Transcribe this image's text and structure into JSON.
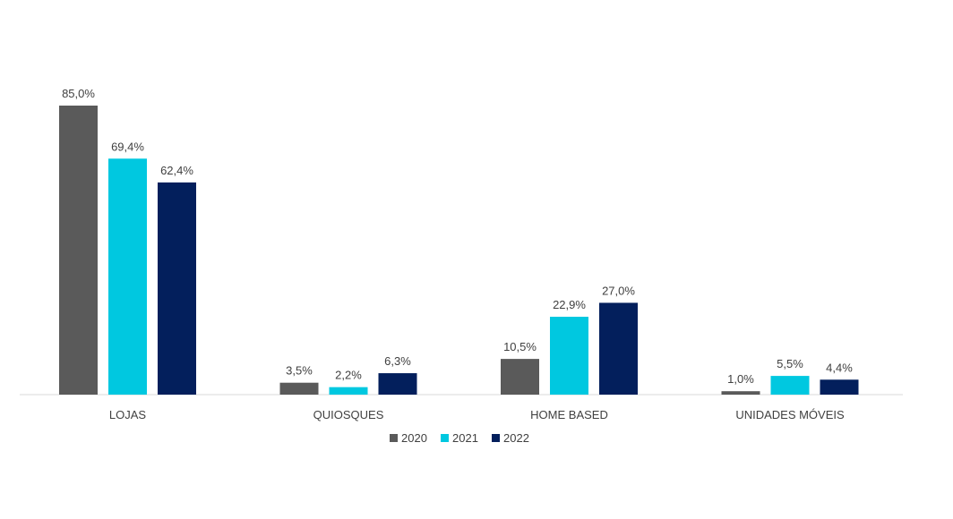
{
  "chart_data": {
    "type": "bar",
    "categories": [
      "LOJAS",
      "QUIOSQUES",
      "HOME BASED",
      "UNIDADES MÓVEIS"
    ],
    "series": [
      {
        "name": "2020",
        "color": "#5a5a5a",
        "values": [
          85.0,
          3.5,
          10.5,
          1.0
        ],
        "labels": [
          "85,0%",
          "3,5%",
          "10,5%",
          "1,0%"
        ]
      },
      {
        "name": "2021",
        "color": "#00c8e0",
        "values": [
          69.4,
          2.2,
          22.9,
          5.5
        ],
        "labels": [
          "69,4%",
          "2,2%",
          "22,9%",
          "5,5%"
        ]
      },
      {
        "name": "2022",
        "color": "#031f5c",
        "values": [
          62.4,
          6.3,
          27.0,
          4.4
        ],
        "labels": [
          "62,4%",
          "6,3%",
          "27,0%",
          "4,4%"
        ]
      }
    ],
    "ylim": [
      0,
      85.0
    ],
    "grid": false,
    "legend_position": "bottom"
  }
}
